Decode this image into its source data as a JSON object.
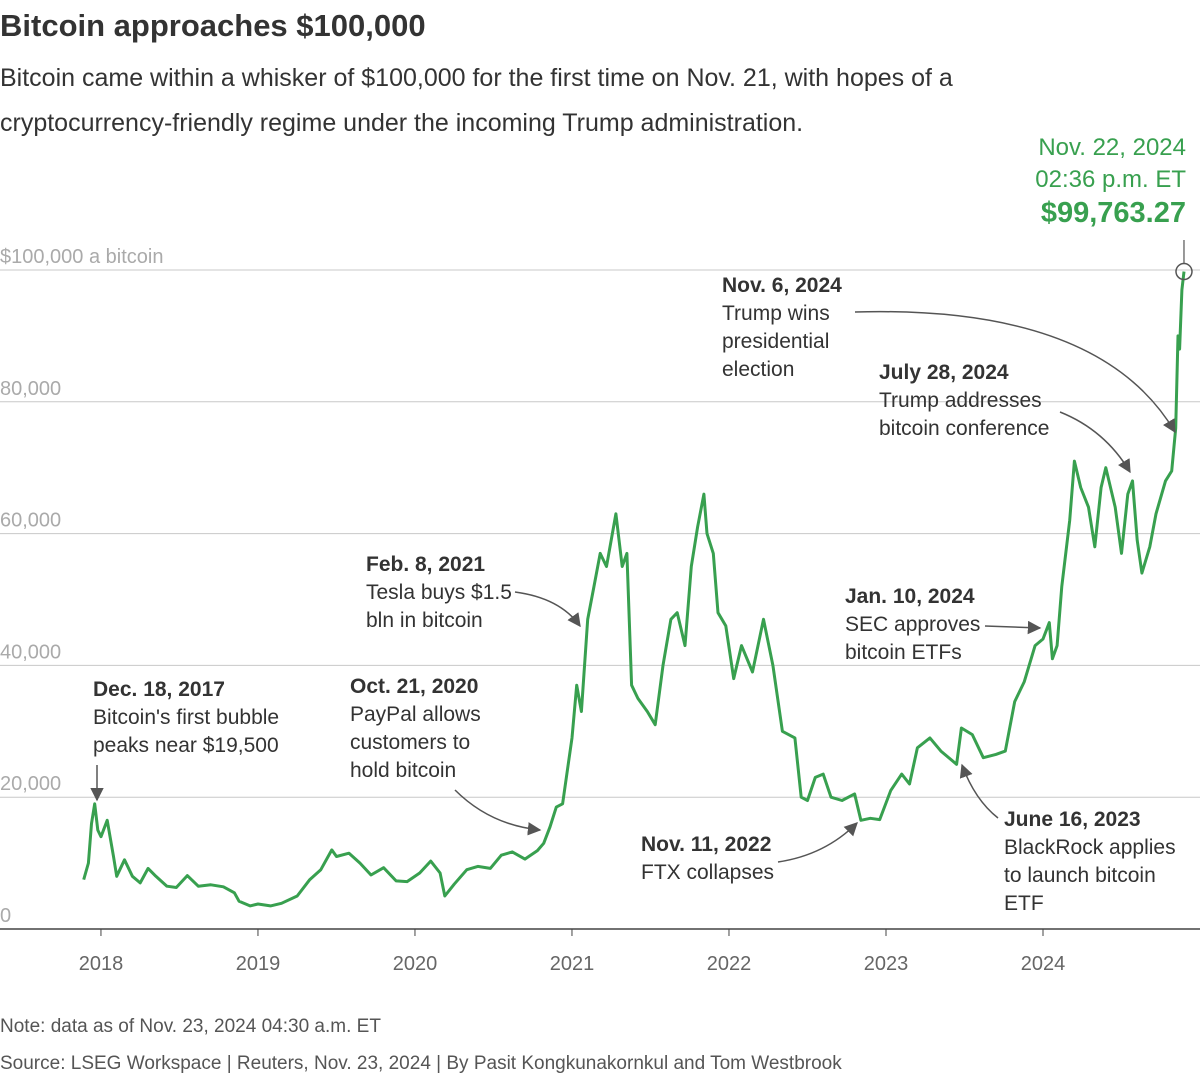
{
  "chart_data": {
    "type": "line",
    "title": "Bitcoin approaches $100,000",
    "subtitle": [
      "Bitcoin came within a whisker of $100,000 for the first time on Nov. 21, with hopes of a",
      "cryptocurrency-friendly regime under the incoming Trump administration."
    ],
    "color": "#38a04f",
    "x": [
      2017.89,
      2017.92,
      2017.94,
      2017.96,
      2017.98,
      2018.0,
      2018.04,
      2018.08,
      2018.1,
      2018.15,
      2018.2,
      2018.25,
      2018.3,
      2018.35,
      2018.42,
      2018.48,
      2018.55,
      2018.62,
      2018.7,
      2018.78,
      2018.85,
      2018.88,
      2018.95,
      2019.0,
      2019.08,
      2019.15,
      2019.25,
      2019.33,
      2019.4,
      2019.47,
      2019.5,
      2019.58,
      2019.65,
      2019.72,
      2019.8,
      2019.88,
      2019.95,
      2020.03,
      2020.1,
      2020.16,
      2020.19,
      2020.25,
      2020.33,
      2020.4,
      2020.48,
      2020.55,
      2020.62,
      2020.7,
      2020.78,
      2020.82,
      2020.86,
      2020.9,
      2020.94,
      2020.97,
      2021.0,
      2021.03,
      2021.06,
      2021.1,
      2021.14,
      2021.18,
      2021.22,
      2021.28,
      2021.32,
      2021.35,
      2021.38,
      2021.42,
      2021.48,
      2021.53,
      2021.58,
      2021.63,
      2021.67,
      2021.72,
      2021.76,
      2021.8,
      2021.84,
      2021.86,
      2021.9,
      2021.93,
      2021.98,
      2022.03,
      2022.08,
      2022.15,
      2022.22,
      2022.28,
      2022.34,
      2022.42,
      2022.46,
      2022.5,
      2022.55,
      2022.6,
      2022.65,
      2022.72,
      2022.8,
      2022.84,
      2022.9,
      2022.96,
      2023.03,
      2023.1,
      2023.15,
      2023.2,
      2023.28,
      2023.35,
      2023.45,
      2023.48,
      2023.55,
      2023.62,
      2023.7,
      2023.76,
      2023.82,
      2023.88,
      2023.95,
      2024.0,
      2024.04,
      2024.06,
      2024.09,
      2024.12,
      2024.17,
      2024.2,
      2024.24,
      2024.29,
      2024.33,
      2024.37,
      2024.4,
      2024.46,
      2024.5,
      2024.54,
      2024.57,
      2024.6,
      2024.63,
      2024.68,
      2024.72,
      2024.78,
      2024.82,
      2024.845,
      2024.86,
      2024.87,
      2024.885,
      2024.898
    ],
    "values": [
      7500,
      10000,
      16000,
      19000,
      15000,
      14000,
      16500,
      11000,
      8000,
      10500,
      8000,
      7000,
      9200,
      8000,
      6500,
      6300,
      8100,
      6500,
      6700,
      6400,
      5500,
      4200,
      3500,
      3800,
      3500,
      3900,
      5000,
      7500,
      9000,
      12000,
      11000,
      11500,
      10000,
      8200,
      9300,
      7300,
      7200,
      8500,
      10300,
      8500,
      5000,
      6800,
      9000,
      9500,
      9200,
      11200,
      11700,
      10600,
      11900,
      13000,
      15500,
      18500,
      19000,
      24000,
      29000,
      37000,
      33000,
      47000,
      52000,
      57000,
      55000,
      63000,
      55000,
      57000,
      37000,
      35000,
      33000,
      31000,
      40000,
      47000,
      48000,
      43000,
      55000,
      61000,
      66000,
      60000,
      57000,
      48000,
      46000,
      38000,
      43000,
      39000,
      47000,
      40000,
      30000,
      29000,
      20000,
      19500,
      23000,
      23500,
      20000,
      19500,
      20500,
      16500,
      16800,
      16600,
      21000,
      23500,
      22000,
      27500,
      29000,
      27000,
      25000,
      30500,
      29500,
      26000,
      26500,
      27000,
      34500,
      37500,
      43000,
      44000,
      46500,
      41000,
      43000,
      52000,
      62000,
      71000,
      67000,
      64000,
      58000,
      67000,
      70000,
      64000,
      57000,
      66000,
      68000,
      59000,
      54000,
      58000,
      63000,
      68000,
      69500,
      76000,
      90000,
      88000,
      97000,
      99763.27
    ],
    "xlim": [
      2017.357,
      2025.0
    ],
    "xticks": [
      2018,
      2019,
      2020,
      2021,
      2022,
      2023,
      2024
    ],
    "ylim": [
      0,
      100000
    ],
    "yticks": [
      {
        "value": 100000,
        "label": "$100,000 a bitcoin"
      },
      {
        "value": 80000,
        "label": "80,000"
      },
      {
        "value": 60000,
        "label": "60,000"
      },
      {
        "value": 40000,
        "label": "40,000"
      },
      {
        "value": 20000,
        "label": "20,000"
      },
      0
    ],
    "grid": true,
    "highlight": {
      "date_label": "Nov. 22, 2024",
      "time_label": "02:36 p.m. ET",
      "value": 99763.27,
      "value_label": "$99,763.27",
      "x": 2024.898
    },
    "annotations": [
      {
        "date": "Dec. 18, 2017",
        "text": [
          "Bitcoin's first bubble",
          "peaks near $19,500"
        ]
      },
      {
        "date": "Oct. 21, 2020",
        "text": [
          "PayPal allows",
          "customers to",
          "hold bitcoin"
        ]
      },
      {
        "date": "Feb. 8, 2021",
        "text": [
          "Tesla buys $1.5",
          "bln in bitcoin"
        ]
      },
      {
        "date": "Nov. 11, 2022",
        "text": [
          "FTX collapses"
        ]
      },
      {
        "date": "June 16, 2023",
        "text": [
          "BlackRock applies",
          "to launch bitcoin",
          "ETF"
        ]
      },
      {
        "date": "Jan. 10, 2024",
        "text": [
          "SEC approves",
          "bitcoin ETFs"
        ]
      },
      {
        "date": "July 28, 2024",
        "text": [
          "Trump addresses",
          "bitcoin conference"
        ]
      },
      {
        "date": "Nov. 6, 2024",
        "text": [
          "Trump wins",
          "presidential",
          "election"
        ]
      }
    ],
    "note": "Note: data as of Nov. 23, 2024 04:30 a.m. ET",
    "source": "Source: LSEG Workspace | Reuters, Nov. 23, 2024 | By Pasit Kongkunakornkul and Tom Westbrook"
  }
}
